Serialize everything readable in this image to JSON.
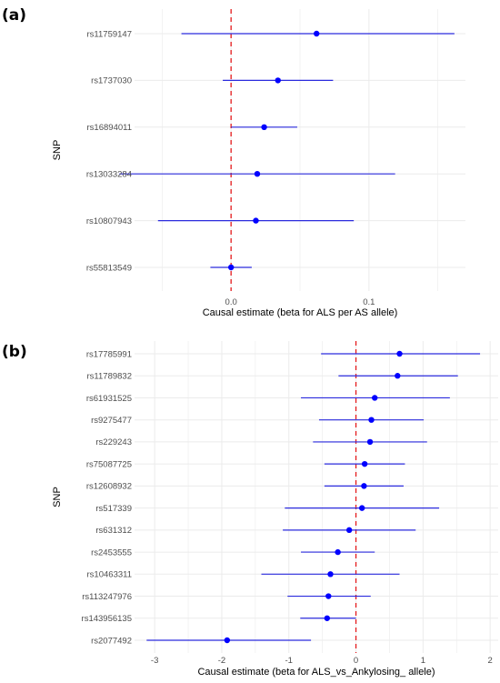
{
  "colors": {
    "point": "#0000ff",
    "ci_line": "#2b2bdd",
    "null_line": "#e41a1c",
    "grid": "#ebebeb"
  },
  "chart_data": [
    {
      "panel_label": "(a)",
      "type": "scatter",
      "xlabel": "Causal estimate (beta for ALS per AS allele)",
      "ylabel": "SNP",
      "xlim": [
        -0.07,
        0.17
      ],
      "xticks": [
        0.0,
        0.1
      ],
      "xtick_labels": [
        "0.0",
        "0.1"
      ],
      "null_line_x": 0,
      "snps": [
        {
          "name": "rs11759147",
          "estimate": 0.062,
          "lower": -0.036,
          "upper": 0.162
        },
        {
          "name": "rs1737030",
          "estimate": 0.034,
          "lower": -0.006,
          "upper": 0.074
        },
        {
          "name": "rs16894011",
          "estimate": 0.024,
          "lower": 0.0,
          "upper": 0.048
        },
        {
          "name": "rs13033284",
          "estimate": 0.019,
          "lower": -0.081,
          "upper": 0.119
        },
        {
          "name": "rs10807943",
          "estimate": 0.018,
          "lower": -0.053,
          "upper": 0.089
        },
        {
          "name": "rs55813549",
          "estimate": 0.0,
          "lower": -0.015,
          "upper": 0.015
        }
      ]
    },
    {
      "panel_label": "(b)",
      "type": "scatter",
      "xlabel": "Causal estimate (beta for ALS_vs_Ankylosing_ allele)",
      "ylabel": "SNP",
      "xlim": [
        -3.3,
        2.12
      ],
      "xticks": [
        -3,
        -2,
        -1,
        0,
        1,
        2
      ],
      "xtick_labels": [
        "-3",
        "-2",
        "-1",
        "0",
        "1",
        "2"
      ],
      "null_line_x": 0,
      "snps": [
        {
          "name": "rs17785991",
          "estimate": 0.65,
          "lower": -0.52,
          "upper": 1.85
        },
        {
          "name": "rs11789832",
          "estimate": 0.62,
          "lower": -0.26,
          "upper": 1.52
        },
        {
          "name": "rs61931525",
          "estimate": 0.28,
          "lower": -0.82,
          "upper": 1.4
        },
        {
          "name": "rs9275477",
          "estimate": 0.23,
          "lower": -0.55,
          "upper": 1.01
        },
        {
          "name": "rs229243",
          "estimate": 0.21,
          "lower": -0.64,
          "upper": 1.06
        },
        {
          "name": "rs75087725",
          "estimate": 0.13,
          "lower": -0.47,
          "upper": 0.73
        },
        {
          "name": "rs12608932",
          "estimate": 0.12,
          "lower": -0.47,
          "upper": 0.71
        },
        {
          "name": "rs517339",
          "estimate": 0.09,
          "lower": -1.06,
          "upper": 1.24
        },
        {
          "name": "rs631312",
          "estimate": -0.1,
          "lower": -1.09,
          "upper": 0.89
        },
        {
          "name": "rs2453555",
          "estimate": -0.27,
          "lower": -0.82,
          "upper": 0.28
        },
        {
          "name": "rs10463311",
          "estimate": -0.38,
          "lower": -1.41,
          "upper": 0.65
        },
        {
          "name": "rs113247976",
          "estimate": -0.41,
          "lower": -1.02,
          "upper": 0.22
        },
        {
          "name": "rs143956135",
          "estimate": -0.43,
          "lower": -0.83,
          "upper": 0.0
        },
        {
          "name": "rs2077492",
          "estimate": -1.92,
          "lower": -3.12,
          "upper": -0.67
        }
      ]
    }
  ]
}
